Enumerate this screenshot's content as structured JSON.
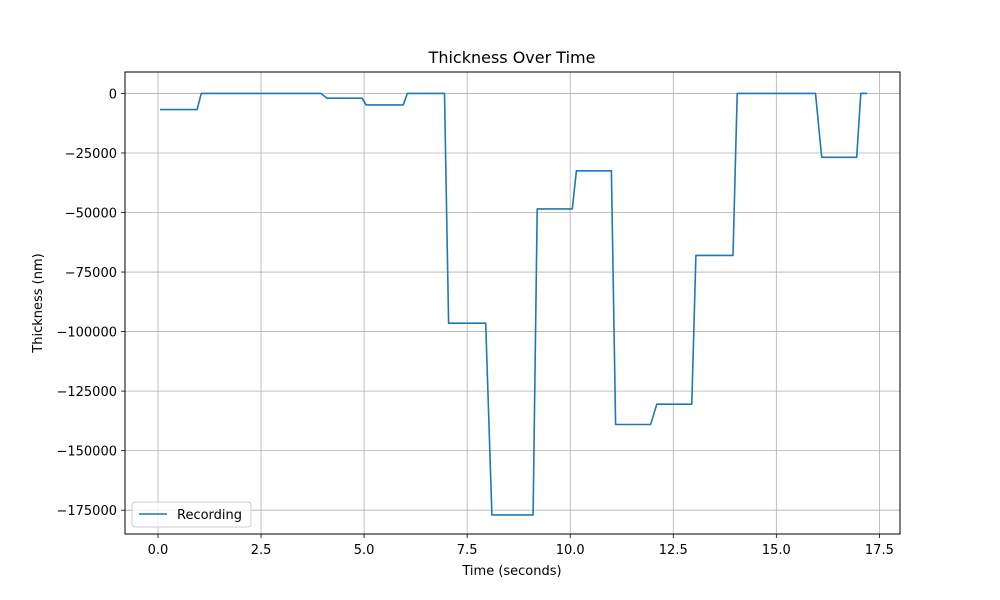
{
  "chart_data": {
    "type": "line",
    "title": "Thickness Over Time",
    "xlabel": "Time (seconds)",
    "ylabel": "Thickness (nm)",
    "xlim": [
      -0.8,
      18.0
    ],
    "ylim": [
      -185000,
      9000
    ],
    "x_ticks": [
      0.0,
      2.5,
      5.0,
      7.5,
      10.0,
      12.5,
      15.0,
      17.5
    ],
    "x_tick_labels": [
      "0.0",
      "2.5",
      "5.0",
      "7.5",
      "10.0",
      "12.5",
      "15.0",
      "17.5"
    ],
    "y_ticks": [
      0,
      -25000,
      -50000,
      -75000,
      -100000,
      -125000,
      -150000,
      -175000
    ],
    "y_tick_labels": [
      "0",
      "−25000",
      "−50000",
      "−75000",
      "−100000",
      "−125000",
      "−150000",
      "−175000"
    ],
    "grid": true,
    "legend": "lower-left",
    "series": [
      {
        "name": "Recording",
        "color": "#1f77b4",
        "x": [
          0.05,
          0.95,
          1.05,
          3.95,
          4.1,
          4.95,
          5.05,
          5.95,
          6.05,
          6.95,
          7.05,
          7.95,
          8.1,
          9.1,
          9.2,
          10.05,
          10.15,
          11.0,
          11.1,
          11.95,
          12.1,
          12.95,
          13.05,
          13.95,
          14.05,
          15.95,
          16.1,
          16.95,
          17.05,
          17.2
        ],
        "y": [
          -6800,
          -6800,
          0,
          0,
          -2000,
          -2000,
          -4800,
          -4800,
          0,
          0,
          -96500,
          -96500,
          -177000,
          -177000,
          -48500,
          -48500,
          -32500,
          -32500,
          -139000,
          -139000,
          -130500,
          -130500,
          -68000,
          -68000,
          0,
          0,
          -26800,
          -26800,
          0,
          0
        ]
      }
    ]
  }
}
